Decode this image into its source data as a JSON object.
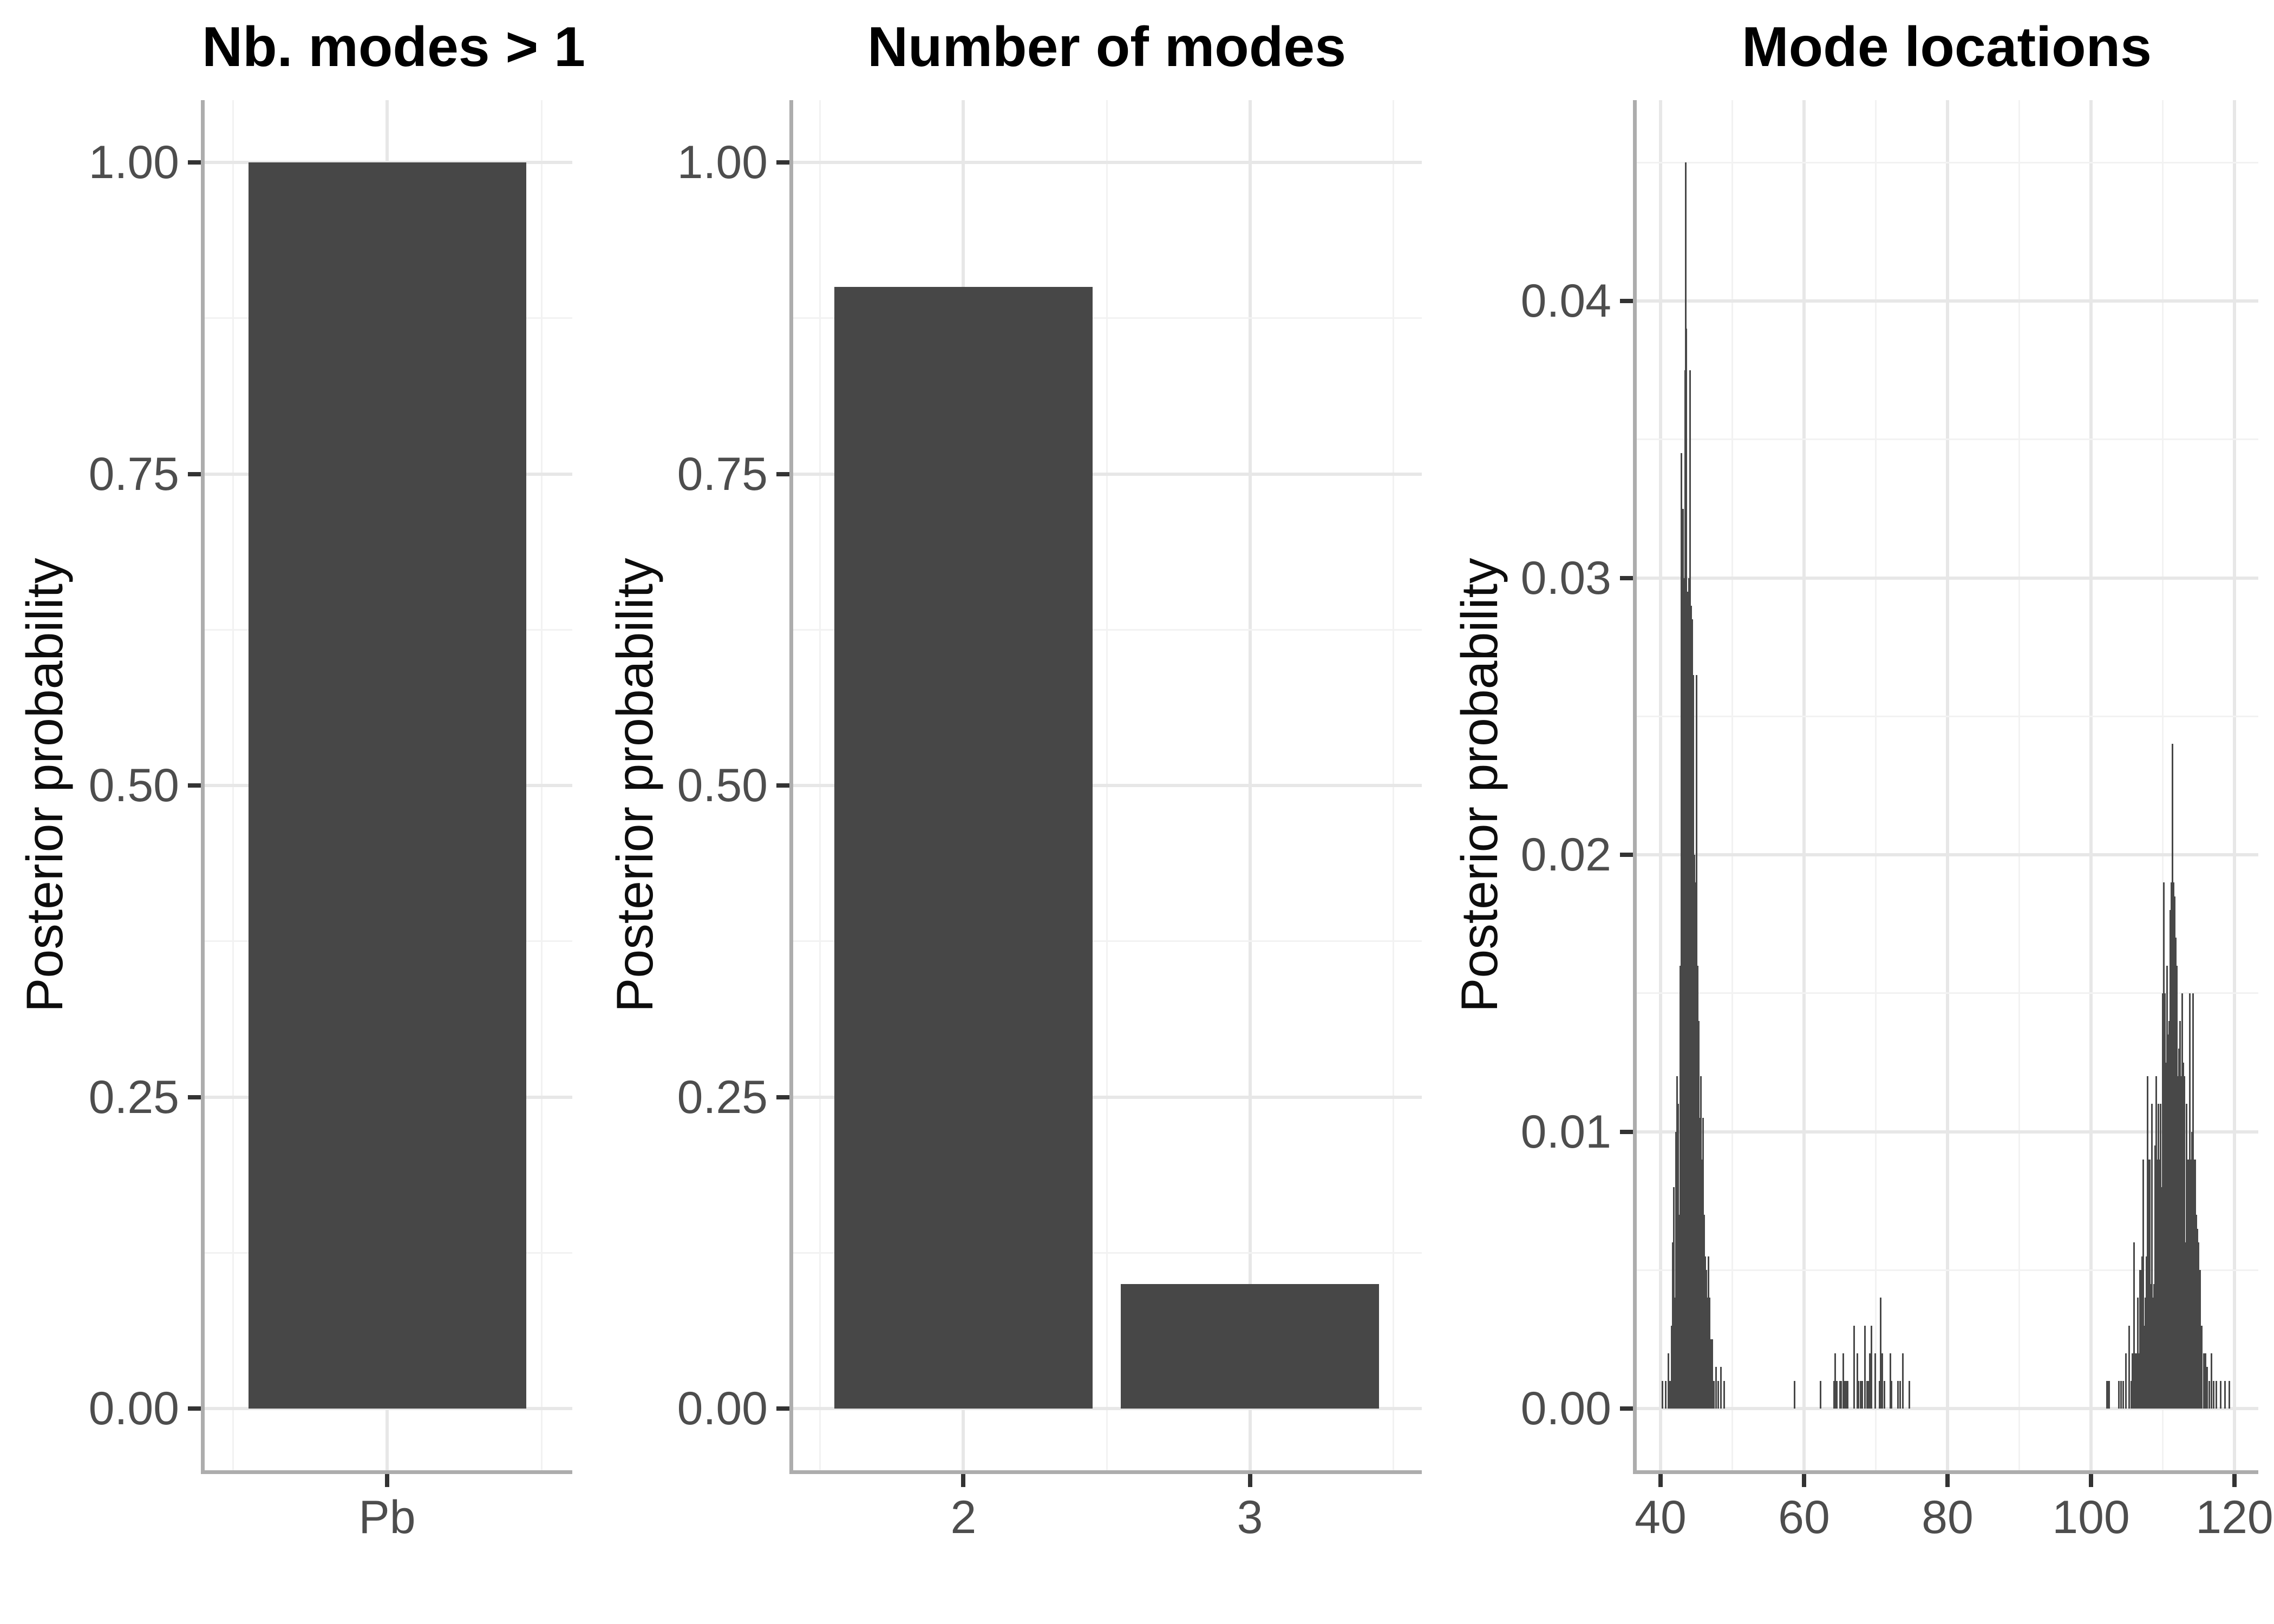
{
  "figure_title": "",
  "colors": {
    "background": "#ffffff",
    "geom_fill": "#474747",
    "grid_major": "#e7e7e7",
    "grid_minor": "#f2f2f2",
    "axis_line": "#adadad",
    "tick_mark": "#333333",
    "tick_label": "#4d4d4d",
    "title_text": "#000000"
  },
  "chart_data": [
    {
      "type": "bar",
      "title": "Nb. modes > 1",
      "xlabel": "",
      "ylabel": "Posterior probability",
      "categories": [
        "Pb"
      ],
      "values": [
        1.0
      ],
      "yticks": [
        0,
        0.25,
        0.5,
        0.75,
        1.0
      ],
      "ytick_labels": [
        "0.00",
        "0.25",
        "0.50",
        "0.75",
        "1.00"
      ],
      "ylim": [
        -0.05,
        1.05
      ],
      "grid": "major+minor",
      "legend": "none"
    },
    {
      "type": "bar",
      "title": "Number of modes",
      "xlabel": "",
      "ylabel": "Posterior probability",
      "categories": [
        "2",
        "3"
      ],
      "values": [
        0.9,
        0.1
      ],
      "yticks": [
        0,
        0.25,
        0.5,
        0.75,
        1.0
      ],
      "ytick_labels": [
        "0.00",
        "0.25",
        "0.50",
        "0.75",
        "1.00"
      ],
      "ylim": [
        -0.05,
        1.05
      ],
      "grid": "major+minor",
      "legend": "none"
    },
    {
      "type": "spike",
      "title": "Mode locations",
      "xlabel": "",
      "ylabel": "Posterior probability",
      "xticks": [
        40,
        60,
        80,
        100,
        120
      ],
      "xtick_labels": [
        "40",
        "60",
        "80",
        "100",
        "120"
      ],
      "yticks": [
        0,
        0.01,
        0.02,
        0.03,
        0.04
      ],
      "ytick_labels": [
        "0.00",
        "0.01",
        "0.02",
        "0.03",
        "0.04"
      ],
      "xlim": [
        37,
        123.3
      ],
      "ylim": [
        -0.00225,
        0.04725
      ],
      "grid": "major+minor",
      "legend": "none",
      "spikes": [
        [
          40.3,
          0.001
        ],
        [
          40.7,
          0.001
        ],
        [
          41.1,
          0.002
        ],
        [
          41.35,
          0.001
        ],
        [
          41.55,
          0.003
        ],
        [
          41.7,
          0.006
        ],
        [
          41.85,
          0.008
        ],
        [
          42.0,
          0.004
        ],
        [
          42.15,
          0.01
        ],
        [
          42.3,
          0.012
        ],
        [
          42.45,
          0.011
        ],
        [
          42.6,
          0.007
        ],
        [
          42.75,
          0.016
        ],
        [
          42.9,
          0.0345
        ],
        [
          43.0,
          0.0275
        ],
        [
          43.1,
          0.0325
        ],
        [
          43.2,
          0.03
        ],
        [
          43.3,
          0.03
        ],
        [
          43.42,
          0.0375
        ],
        [
          43.5,
          0.045
        ],
        [
          43.62,
          0.039
        ],
        [
          43.75,
          0.0295
        ],
        [
          43.85,
          0.0295
        ],
        [
          43.95,
          0.03
        ],
        [
          44.1,
          0.0375
        ],
        [
          44.25,
          0.029
        ],
        [
          44.4,
          0.0285
        ],
        [
          44.55,
          0.0265
        ],
        [
          44.7,
          0.02
        ],
        [
          44.85,
          0.019
        ],
        [
          45.0,
          0.0265
        ],
        [
          45.15,
          0.016
        ],
        [
          45.3,
          0.014
        ],
        [
          45.45,
          0.0105
        ],
        [
          45.6,
          0.012
        ],
        [
          45.75,
          0.009
        ],
        [
          45.9,
          0.0105
        ],
        [
          46.05,
          0.007
        ],
        [
          46.2,
          0.0055
        ],
        [
          46.35,
          0.005
        ],
        [
          46.5,
          0.004
        ],
        [
          46.65,
          0.0055
        ],
        [
          46.8,
          0.004
        ],
        [
          47.0,
          0.0025
        ],
        [
          47.2,
          0.0025
        ],
        [
          47.45,
          0.001
        ],
        [
          47.7,
          0.0015
        ],
        [
          48.0,
          0.001
        ],
        [
          48.4,
          0.0015
        ],
        [
          48.9,
          0.001
        ],
        [
          58.7,
          0.001
        ],
        [
          62.3,
          0.001
        ],
        [
          64.2,
          0.001
        ],
        [
          64.35,
          0.002
        ],
        [
          64.6,
          0.001
        ],
        [
          65.0,
          0.001
        ],
        [
          65.15,
          0.001
        ],
        [
          65.5,
          0.002
        ],
        [
          65.7,
          0.001
        ],
        [
          65.9,
          0.001
        ],
        [
          66.1,
          0.001
        ],
        [
          67.0,
          0.003
        ],
        [
          67.4,
          0.002
        ],
        [
          67.6,
          0.001
        ],
        [
          67.9,
          0.001
        ],
        [
          68.1,
          0.001
        ],
        [
          68.5,
          0.003
        ],
        [
          68.8,
          0.001
        ],
        [
          69.0,
          0.001
        ],
        [
          69.15,
          0.002
        ],
        [
          69.4,
          0.003
        ],
        [
          69.9,
          0.002
        ],
        [
          70.5,
          0.001
        ],
        [
          70.7,
          0.004
        ],
        [
          70.9,
          0.002
        ],
        [
          71.2,
          0.001
        ],
        [
          72.0,
          0.002
        ],
        [
          72.2,
          0.001
        ],
        [
          73.1,
          0.001
        ],
        [
          73.4,
          0.001
        ],
        [
          73.8,
          0.002
        ],
        [
          74.7,
          0.001
        ],
        [
          102.2,
          0.001
        ],
        [
          102.35,
          0.001
        ],
        [
          102.55,
          0.001
        ],
        [
          103.9,
          0.001
        ],
        [
          104.2,
          0.001
        ],
        [
          104.5,
          0.001
        ],
        [
          104.85,
          0.002
        ],
        [
          105.3,
          0.003
        ],
        [
          105.6,
          0.001
        ],
        [
          105.75,
          0.002
        ],
        [
          105.9,
          0.001
        ],
        [
          106.0,
          0.006
        ],
        [
          106.15,
          0.002
        ],
        [
          106.3,
          0.002
        ],
        [
          106.5,
          0.004
        ],
        [
          106.65,
          0.002
        ],
        [
          106.8,
          0.005
        ],
        [
          107.0,
          0.005
        ],
        [
          107.15,
          0.0055
        ],
        [
          107.3,
          0.009
        ],
        [
          107.45,
          0.003
        ],
        [
          107.6,
          0.004
        ],
        [
          107.75,
          0.0055
        ],
        [
          107.9,
          0.012
        ],
        [
          108.05,
          0.009
        ],
        [
          108.2,
          0.009
        ],
        [
          108.35,
          0.0045
        ],
        [
          108.5,
          0.011
        ],
        [
          108.65,
          0.004
        ],
        [
          108.8,
          0.0045
        ],
        [
          108.95,
          0.0095
        ],
        [
          109.1,
          0.012
        ],
        [
          109.25,
          0.009
        ],
        [
          109.4,
          0.011
        ],
        [
          109.55,
          0.009
        ],
        [
          109.7,
          0.011
        ],
        [
          109.85,
          0.008
        ],
        [
          110.0,
          0.015
        ],
        [
          110.15,
          0.019
        ],
        [
          110.3,
          0.015
        ],
        [
          110.45,
          0.0125
        ],
        [
          110.6,
          0.016
        ],
        [
          110.75,
          0.0135
        ],
        [
          110.9,
          0.014
        ],
        [
          111.05,
          0.018
        ],
        [
          111.2,
          0.019
        ],
        [
          111.35,
          0.024
        ],
        [
          111.5,
          0.019
        ],
        [
          111.65,
          0.0185
        ],
        [
          111.8,
          0.017
        ],
        [
          111.95,
          0.016
        ],
        [
          112.1,
          0.012
        ],
        [
          112.25,
          0.013
        ],
        [
          112.4,
          0.014
        ],
        [
          112.55,
          0.012
        ],
        [
          112.7,
          0.015
        ],
        [
          112.85,
          0.0125
        ],
        [
          113.0,
          0.012
        ],
        [
          113.15,
          0.006
        ],
        [
          113.3,
          0.011
        ],
        [
          113.45,
          0.009
        ],
        [
          113.6,
          0.009
        ],
        [
          113.75,
          0.015
        ],
        [
          113.9,
          0.009
        ],
        [
          114.05,
          0.01
        ],
        [
          114.2,
          0.015
        ],
        [
          114.35,
          0.009
        ],
        [
          114.5,
          0.009
        ],
        [
          114.65,
          0.007
        ],
        [
          114.8,
          0.0065
        ],
        [
          115.0,
          0.006
        ],
        [
          115.2,
          0.005
        ],
        [
          115.45,
          0.003
        ],
        [
          115.7,
          0.002
        ],
        [
          115.95,
          0.002
        ],
        [
          116.2,
          0.0015
        ],
        [
          116.5,
          0.001
        ],
        [
          116.8,
          0.002
        ],
        [
          117.1,
          0.001
        ],
        [
          117.5,
          0.001
        ],
        [
          118.1,
          0.001
        ],
        [
          118.7,
          0.001
        ],
        [
          119.3,
          0.001
        ]
      ]
    }
  ]
}
